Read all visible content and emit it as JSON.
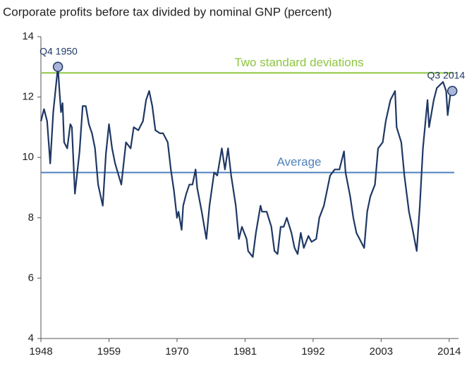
{
  "chart_data": {
    "type": "line",
    "title": "Corporate profits before tax divided by nominal GNP (percent)",
    "color": "#1f3864",
    "x": [
      1948.0,
      1948.5,
      1949.0,
      1949.25,
      1949.5,
      1950.0,
      1950.75,
      1951.0,
      1951.25,
      1951.5,
      1951.75,
      1952.25,
      1952.75,
      1953.0,
      1953.5,
      1954.25,
      1954.75,
      1955.25,
      1955.75,
      1956.25,
      1956.75,
      1957.25,
      1958.0,
      1958.5,
      1959.0,
      1959.5,
      1960.0,
      1961.0,
      1961.75,
      1962.5,
      1963.0,
      1963.75,
      1964.5,
      1965.0,
      1965.5,
      1966.0,
      1966.5,
      1967.25,
      1967.75,
      1968.5,
      1969.0,
      1969.5,
      1970.0,
      1970.25,
      1970.75,
      1971.0,
      1971.5,
      1972.0,
      1972.5,
      1973.0,
      1973.25,
      1974.0,
      1974.75,
      1975.25,
      1976.0,
      1976.5,
      1977.25,
      1977.75,
      1978.25,
      1978.75,
      1979.5,
      1980.0,
      1980.5,
      1981.25,
      1981.5,
      1982.25,
      1982.75,
      1983.5,
      1983.75,
      1984.5,
      1985.25,
      1985.75,
      1986.25,
      1986.75,
      1987.25,
      1987.75,
      1988.5,
      1989.0,
      1989.5,
      1990.0,
      1990.5,
      1991.25,
      1991.75,
      1992.5,
      1993.0,
      1993.75,
      1994.25,
      1994.75,
      1995.5,
      1996.25,
      1997.0,
      1997.25,
      1998.0,
      1998.5,
      1999.0,
      1999.75,
      2000.25,
      2000.75,
      2001.25,
      2002.0,
      2002.5,
      2003.25,
      2003.75,
      2004.5,
      2005.25,
      2005.5,
      2006.25,
      2006.75,
      2007.5,
      2008.0,
      2008.75,
      2009.25,
      2009.75,
      2010.5,
      2010.75,
      2011.5,
      2012.0,
      2012.5,
      2013.0,
      2013.5,
      2013.75,
      2014.25,
      2014.5
    ],
    "values": [
      11.2,
      11.6,
      11.2,
      10.5,
      9.8,
      11.5,
      13.0,
      12.2,
      11.5,
      11.8,
      10.5,
      10.3,
      11.1,
      11.0,
      8.8,
      10.2,
      11.7,
      11.7,
      11.1,
      10.8,
      10.3,
      9.1,
      8.4,
      10.1,
      11.1,
      10.3,
      9.8,
      9.1,
      10.5,
      10.3,
      11.0,
      10.9,
      11.2,
      11.9,
      12.2,
      11.7,
      10.9,
      10.8,
      10.8,
      10.5,
      9.6,
      8.9,
      8.0,
      8.2,
      7.6,
      8.4,
      8.8,
      9.1,
      9.1,
      9.6,
      9.0,
      8.2,
      7.3,
      8.4,
      9.5,
      9.4,
      10.3,
      9.6,
      10.3,
      9.4,
      8.4,
      7.3,
      7.7,
      7.3,
      6.9,
      6.7,
      7.5,
      8.4,
      8.2,
      8.2,
      7.7,
      6.9,
      6.8,
      7.7,
      7.7,
      8.0,
      7.5,
      7.0,
      6.8,
      7.5,
      7.0,
      7.4,
      7.2,
      7.3,
      8.0,
      8.4,
      8.9,
      9.4,
      9.6,
      9.6,
      10.2,
      9.5,
      8.7,
      8.0,
      7.5,
      7.2,
      7.0,
      8.2,
      8.7,
      9.1,
      10.3,
      10.5,
      11.2,
      11.9,
      12.2,
      11.0,
      10.5,
      9.4,
      8.2,
      7.7,
      6.9,
      8.4,
      10.3,
      11.9,
      11.0,
      11.9,
      12.3,
      12.4,
      12.5,
      12.2,
      11.4,
      12.2,
      12.2
    ],
    "xlim": [
      1948,
      2015.5
    ],
    "xticks": [
      1948,
      1959,
      1970,
      1981,
      1992,
      2003,
      2014
    ],
    "ylim": [
      4,
      14
    ],
    "yticks": [
      4,
      6,
      8,
      10,
      12,
      14
    ],
    "grid": false,
    "reference_lines": [
      {
        "label": "Two standard deviations",
        "value": 12.8,
        "color": "#8dc63f"
      },
      {
        "label": "Average",
        "value": 9.5,
        "color": "#4f81bd"
      }
    ],
    "annotations": [
      {
        "label": "Q4 1950",
        "x": 1950.75,
        "y": 13.0
      },
      {
        "label": "Q3 2014",
        "x": 2014.5,
        "y": 12.2
      }
    ]
  }
}
